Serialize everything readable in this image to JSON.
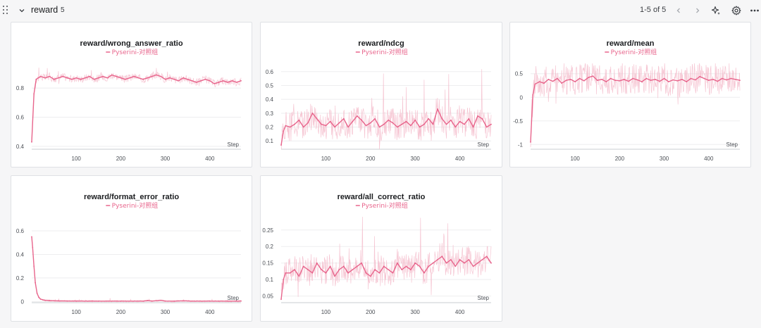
{
  "section": {
    "title": "reward",
    "count": "5",
    "pager": "1-5 of 5"
  },
  "colors": {
    "series": "#e8658c",
    "raw": "#f4b8c8",
    "grid": "#eeeeef",
    "axis_text": "#4b4f55"
  },
  "icons": [
    "drag-handle-icon",
    "chevron-down-icon",
    "chevron-left-icon",
    "chevron-right-icon",
    "sparkle-icon",
    "gear-icon",
    "more-icon"
  ],
  "chart_data": [
    {
      "type": "line",
      "title": "reward/wrong_answer_ratio",
      "legend": "Pyserini-对照组",
      "xlabel": "Step",
      "xlim": [
        0,
        470
      ],
      "ylim": [
        0.38,
        0.97
      ],
      "xticks": [
        100,
        200,
        300,
        400
      ],
      "yticks": [
        0.4,
        0.6,
        0.8
      ],
      "ytick_labels": [
        "0.4",
        "0.6",
        "0.8"
      ],
      "series": [
        {
          "x": [
            0,
            5,
            10,
            20,
            30,
            40,
            50,
            60,
            70,
            80,
            90,
            100,
            110,
            120,
            130,
            140,
            150,
            160,
            170,
            180,
            190,
            200,
            210,
            220,
            230,
            240,
            250,
            260,
            270,
            280,
            290,
            300,
            310,
            320,
            330,
            340,
            350,
            360,
            370,
            380,
            390,
            400,
            410,
            420,
            430,
            440,
            450,
            460,
            470
          ],
          "y": [
            0.43,
            0.76,
            0.86,
            0.88,
            0.87,
            0.88,
            0.86,
            0.87,
            0.88,
            0.87,
            0.86,
            0.87,
            0.86,
            0.87,
            0.88,
            0.86,
            0.87,
            0.88,
            0.87,
            0.89,
            0.88,
            0.87,
            0.86,
            0.87,
            0.88,
            0.87,
            0.86,
            0.87,
            0.88,
            0.89,
            0.88,
            0.86,
            0.87,
            0.86,
            0.85,
            0.87,
            0.86,
            0.85,
            0.84,
            0.85,
            0.86,
            0.85,
            0.83,
            0.84,
            0.85,
            0.84,
            0.85,
            0.84,
            0.85
          ]
        }
      ]
    },
    {
      "type": "line",
      "title": "reward/ndcg",
      "legend": "Pyserini-对照组",
      "xlabel": "Step",
      "xlim": [
        0,
        470
      ],
      "ylim": [
        0.04,
        0.66
      ],
      "xticks": [
        100,
        200,
        300,
        400
      ],
      "yticks": [
        0.1,
        0.2,
        0.3,
        0.4,
        0.5,
        0.6
      ],
      "ytick_labels": [
        "0.1",
        "0.2",
        "0.3",
        "0.4",
        "0.5",
        "0.6"
      ],
      "series": [
        {
          "x": [
            0,
            5,
            10,
            20,
            30,
            40,
            50,
            60,
            70,
            80,
            90,
            100,
            110,
            120,
            130,
            140,
            150,
            160,
            170,
            180,
            190,
            200,
            210,
            220,
            230,
            240,
            250,
            260,
            270,
            280,
            290,
            300,
            310,
            320,
            330,
            340,
            350,
            360,
            370,
            380,
            390,
            400,
            410,
            420,
            430,
            440,
            450,
            460,
            470
          ],
          "y": [
            0.07,
            0.17,
            0.21,
            0.2,
            0.22,
            0.25,
            0.2,
            0.23,
            0.3,
            0.26,
            0.22,
            0.21,
            0.24,
            0.2,
            0.23,
            0.26,
            0.2,
            0.24,
            0.28,
            0.25,
            0.21,
            0.23,
            0.26,
            0.2,
            0.22,
            0.25,
            0.23,
            0.2,
            0.22,
            0.24,
            0.21,
            0.25,
            0.2,
            0.22,
            0.26,
            0.22,
            0.33,
            0.26,
            0.22,
            0.25,
            0.2,
            0.24,
            0.22,
            0.26,
            0.2,
            0.28,
            0.26,
            0.2,
            0.22
          ]
        }
      ]
    },
    {
      "type": "line",
      "title": "reward/mean",
      "legend": "Pyserini-对照组",
      "xlabel": "Step",
      "xlim": [
        0,
        470
      ],
      "ylim": [
        -1.1,
        0.72
      ],
      "xticks": [
        100,
        200,
        300,
        400
      ],
      "yticks": [
        -1,
        -0.5,
        0,
        0.5
      ],
      "ytick_labels": [
        "-1",
        "-0.5",
        "0",
        "0.5"
      ],
      "series": [
        {
          "x": [
            0,
            5,
            10,
            20,
            30,
            40,
            50,
            60,
            70,
            80,
            90,
            100,
            110,
            120,
            130,
            140,
            150,
            160,
            170,
            180,
            190,
            200,
            210,
            220,
            230,
            240,
            250,
            260,
            270,
            280,
            290,
            300,
            310,
            320,
            330,
            340,
            350,
            360,
            370,
            380,
            390,
            400,
            410,
            420,
            430,
            440,
            450,
            460,
            470
          ],
          "y": [
            -0.95,
            0.05,
            0.28,
            0.33,
            0.3,
            0.38,
            0.34,
            0.4,
            0.3,
            0.36,
            0.38,
            0.33,
            0.4,
            0.35,
            0.42,
            0.45,
            0.36,
            0.38,
            0.33,
            0.4,
            0.36,
            0.35,
            0.38,
            0.34,
            0.4,
            0.37,
            0.33,
            0.4,
            0.36,
            0.38,
            0.34,
            0.4,
            0.33,
            0.37,
            0.35,
            0.38,
            0.33,
            0.4,
            0.37,
            0.44,
            0.4,
            0.36,
            0.38,
            0.34,
            0.4,
            0.37,
            0.4,
            0.38,
            0.36
          ]
        }
      ]
    },
    {
      "type": "line",
      "title": "reward/format_error_ratio",
      "legend": "Pyserini-对照组",
      "xlabel": "Step",
      "xlim": [
        0,
        470
      ],
      "ylim": [
        -0.01,
        0.72
      ],
      "xticks": [
        100,
        200,
        300,
        400
      ],
      "yticks": [
        0,
        0.2,
        0.4,
        0.6
      ],
      "ytick_labels": [
        "0",
        "0.2",
        "0.4",
        "0.6"
      ],
      "series": [
        {
          "x": [
            0,
            2,
            5,
            8,
            12,
            16,
            20,
            25,
            30,
            40,
            50,
            60,
            80,
            100,
            150,
            200,
            250,
            260,
            270,
            290,
            300,
            320,
            340,
            360,
            400,
            420,
            440,
            460,
            470
          ],
          "y": [
            0.55,
            0.46,
            0.3,
            0.16,
            0.07,
            0.035,
            0.02,
            0.014,
            0.01,
            0.008,
            0.006,
            0.005,
            0.004,
            0.004,
            0.003,
            0.003,
            0.003,
            0.008,
            0.004,
            0.01,
            0.004,
            0.003,
            0.006,
            0.003,
            0.003,
            0.003,
            0.003,
            0.003,
            0.004
          ]
        }
      ]
    },
    {
      "type": "line",
      "title": "reward/all_correct_ratio",
      "legend": "Pyserini-对照组",
      "xlabel": "Step",
      "xlim": [
        0,
        470
      ],
      "ylim": [
        0.03,
        0.29
      ],
      "xticks": [
        100,
        200,
        300,
        400
      ],
      "yticks": [
        0.05,
        0.1,
        0.15,
        0.2,
        0.25
      ],
      "ytick_labels": [
        "0.05",
        "0.1",
        "0.15",
        "0.2",
        "0.25"
      ],
      "series": [
        {
          "x": [
            0,
            5,
            10,
            20,
            30,
            40,
            50,
            60,
            70,
            80,
            90,
            100,
            110,
            120,
            130,
            140,
            150,
            160,
            170,
            180,
            190,
            200,
            210,
            220,
            230,
            240,
            250,
            260,
            270,
            280,
            290,
            300,
            310,
            320,
            330,
            340,
            350,
            360,
            370,
            380,
            390,
            400,
            410,
            420,
            430,
            440,
            450,
            460,
            470
          ],
          "y": [
            0.04,
            0.1,
            0.12,
            0.12,
            0.13,
            0.11,
            0.14,
            0.13,
            0.12,
            0.15,
            0.13,
            0.12,
            0.14,
            0.11,
            0.13,
            0.14,
            0.12,
            0.13,
            0.14,
            0.15,
            0.12,
            0.11,
            0.13,
            0.12,
            0.14,
            0.13,
            0.12,
            0.15,
            0.13,
            0.14,
            0.13,
            0.15,
            0.14,
            0.12,
            0.14,
            0.15,
            0.16,
            0.17,
            0.15,
            0.16,
            0.14,
            0.16,
            0.15,
            0.16,
            0.14,
            0.15,
            0.16,
            0.17,
            0.15
          ]
        }
      ]
    }
  ]
}
